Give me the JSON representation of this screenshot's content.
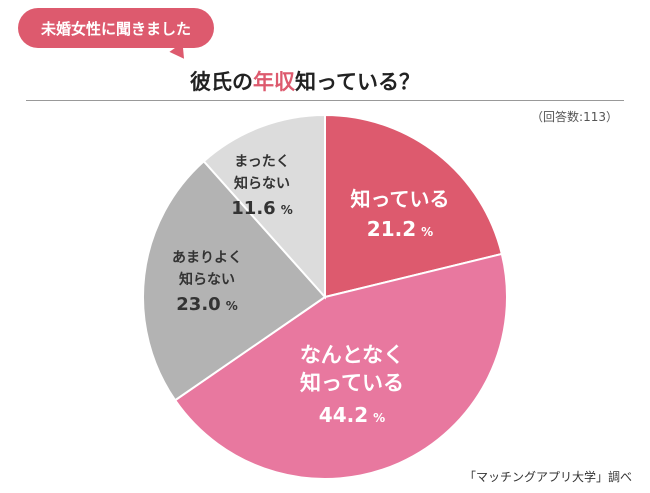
{
  "header": {
    "badge": "未婚女性に聞きました",
    "title_pre": "彼氏の",
    "title_highlight": "年収",
    "title_post": "知っている？"
  },
  "sample_note": "（回答数:113）",
  "source": "「マッチングアプリ大学」調べ",
  "colors": {
    "accent": "#dd5a6e",
    "slice1": "#dd5a6e",
    "slice2": "#e8789f",
    "slice3": "#b3b3b3",
    "slice4": "#dcdcdc"
  },
  "chart_data": {
    "type": "pie",
    "unit": "%",
    "slices": [
      {
        "label_lines": [
          "知っている"
        ],
        "value": 21.2,
        "value_text": "21.2",
        "color": "#dd5a6e",
        "text_color": "#ffffff"
      },
      {
        "label_lines": [
          "なんとなく",
          "知っている"
        ],
        "value": 44.2,
        "value_text": "44.2",
        "color": "#e8789f",
        "text_color": "#ffffff"
      },
      {
        "label_lines": [
          "あまりよく",
          "知らない"
        ],
        "value": 23.0,
        "value_text": "23.0",
        "color": "#b3b3b3",
        "text_color": "#333333"
      },
      {
        "label_lines": [
          "まったく",
          "知らない"
        ],
        "value": 11.6,
        "value_text": "11.6",
        "color": "#dcdcdc",
        "text_color": "#333333"
      }
    ]
  }
}
